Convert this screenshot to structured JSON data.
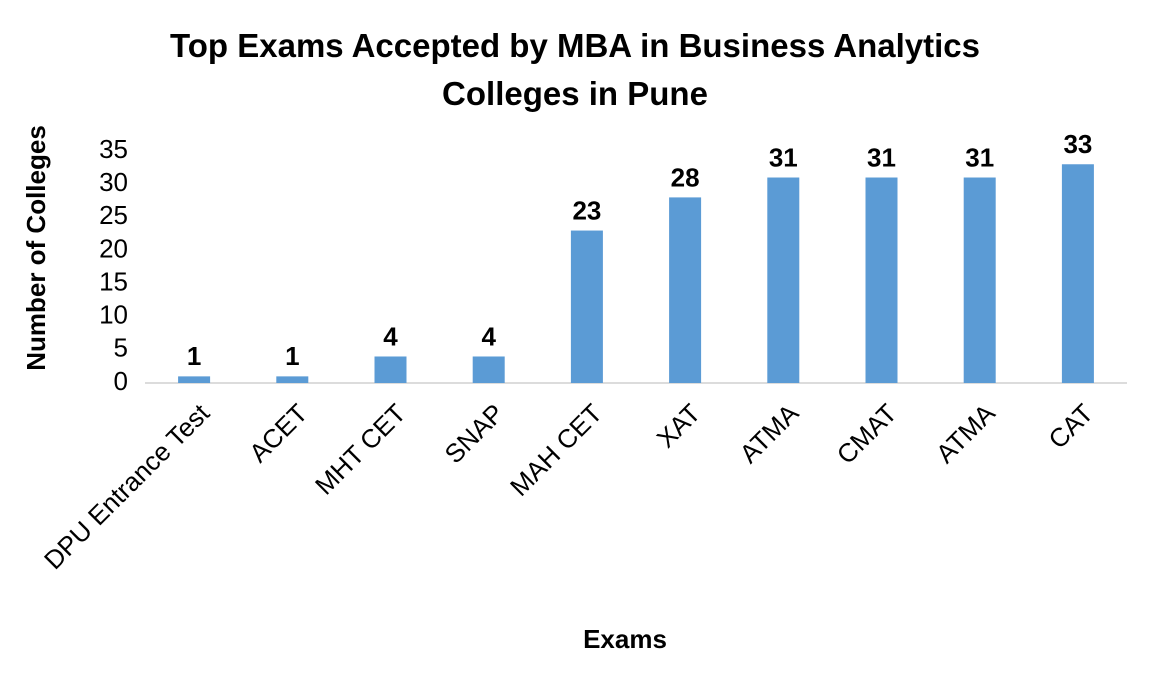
{
  "chart_data": {
    "type": "bar",
    "title": "Top Exams Accepted by MBA in Business Analytics Colleges in Pune",
    "x_label": "Exams",
    "y_label": "Number of Colleges",
    "categories": [
      "DPU Entrance Test",
      "ACET",
      "MHT CET",
      "SNAP",
      "MAH CET",
      "XAT",
      "ATMA",
      "CMAT",
      "ATMA",
      "CAT"
    ],
    "values": [
      1,
      1,
      4,
      4,
      23,
      28,
      31,
      31,
      31,
      33
    ],
    "color": "#5b9bd5",
    "ylim": [
      0,
      35
    ],
    "yticks": [
      0,
      5,
      10,
      15,
      20,
      25,
      30,
      35
    ],
    "grid": false
  }
}
